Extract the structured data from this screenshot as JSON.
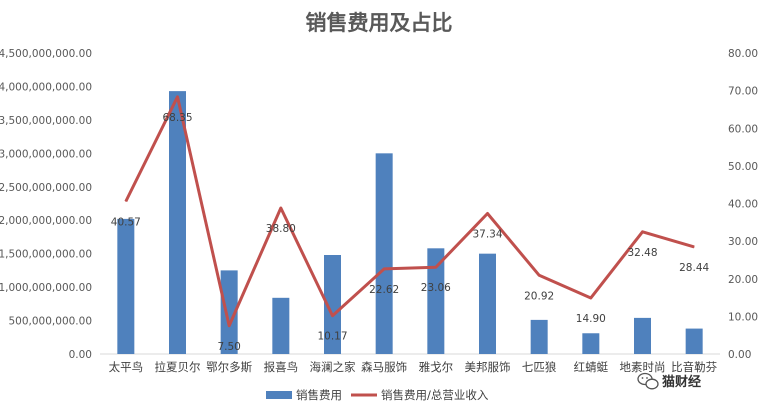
{
  "chart_data": {
    "type": "bar",
    "title": "销售费用及占比",
    "categories": [
      "太平鸟",
      "拉夏贝尔",
      "鄂尔多斯",
      "报喜鸟",
      "海澜之家",
      "森马服饰",
      "雅戈尔",
      "美邦服饰",
      "七匹狼",
      "红蜻蜓",
      "地素时尚",
      "比音勒芬"
    ],
    "series": [
      {
        "name": "销售费用",
        "type": "bar",
        "axis": "left",
        "color": "#4F81BD",
        "values": [
          2020000000,
          3930000000,
          1250000000,
          840000000,
          1480000000,
          3000000000,
          1580000000,
          1500000000,
          510000000,
          310000000,
          540000000,
          380000000
        ]
      },
      {
        "name": "销售费用/总营业收入",
        "type": "line",
        "axis": "right",
        "color": "#C0504D",
        "values": [
          40.57,
          68.35,
          7.5,
          38.8,
          10.17,
          22.62,
          23.06,
          37.34,
          20.92,
          14.9,
          32.48,
          28.44
        ],
        "labels": [
          "40.57",
          "68.35",
          "7.50",
          "38.80",
          "10.17",
          "22.62",
          "23.06",
          "37.34",
          "20.92",
          "14.90",
          "32.48",
          "28.44"
        ]
      }
    ],
    "y_left": {
      "ylim": [
        0,
        4500000000
      ],
      "ticks": [
        0,
        500000000,
        1000000000,
        1500000000,
        2000000000,
        2500000000,
        3000000000,
        3500000000,
        4000000000,
        4500000000
      ],
      "tick_labels": [
        "0.00",
        "500,000,000.00",
        "1,000,000,000.00",
        "1,500,000,000.00",
        "2,000,000,000.00",
        "2,500,000,000.00",
        "3,000,000,000.00",
        "3,500,000,000.00",
        "4,000,000,000.00",
        "4,500,000,000.00"
      ]
    },
    "y_right": {
      "ylim": [
        0,
        80
      ],
      "ticks": [
        0,
        10,
        20,
        30,
        40,
        50,
        60,
        70,
        80
      ],
      "tick_labels": [
        "0.00",
        "10.00",
        "20.00",
        "30.00",
        "40.00",
        "50.00",
        "60.00",
        "70.00",
        "80.00"
      ]
    },
    "grid": false,
    "legend": "bottom"
  },
  "watermark": {
    "text": "猫财经",
    "icon": "wechat-icon"
  }
}
